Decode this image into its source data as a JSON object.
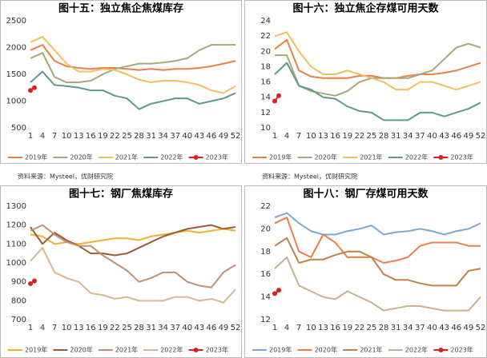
{
  "chart_data": [
    {
      "type": "line",
      "title": "图十五：独立焦企焦煤库存",
      "source": "资料来源：Mysteel，优财研究院",
      "xlim": [
        1,
        52
      ],
      "xticks": [
        1,
        4,
        7,
        10,
        13,
        16,
        19,
        22,
        25,
        28,
        31,
        34,
        37,
        40,
        43,
        46,
        49,
        52
      ],
      "ylim": [
        500,
        2500
      ],
      "yticks": [
        500,
        1000,
        1500,
        2000,
        2500
      ],
      "series": [
        {
          "name": "2019年",
          "color": "#e8804a",
          "x": [
            1,
            4,
            7,
            10,
            13,
            16,
            19,
            22,
            25,
            28,
            31,
            34,
            37,
            40,
            43,
            46,
            49,
            52
          ],
          "values": [
            1950,
            2050,
            1750,
            1650,
            1620,
            1600,
            1620,
            1620,
            1600,
            1580,
            1600,
            1580,
            1600,
            1600,
            1620,
            1650,
            1700,
            1750
          ]
        },
        {
          "name": "2020年",
          "color": "#a8a878",
          "x": [
            1,
            4,
            7,
            10,
            13,
            16,
            19,
            22,
            25,
            28,
            31,
            34,
            37,
            40,
            43,
            46,
            49,
            52
          ],
          "values": [
            1800,
            1900,
            1450,
            1350,
            1350,
            1380,
            1500,
            1600,
            1650,
            1700,
            1700,
            1720,
            1750,
            1800,
            1950,
            2050,
            2050,
            2050
          ]
        },
        {
          "name": "2021年",
          "color": "#f0c060",
          "x": [
            1,
            4,
            7,
            10,
            13,
            16,
            19,
            22,
            25,
            28,
            31,
            34,
            37,
            40,
            43,
            46,
            49,
            52
          ],
          "values": [
            2100,
            2200,
            1950,
            1700,
            1550,
            1550,
            1600,
            1580,
            1500,
            1400,
            1350,
            1380,
            1380,
            1350,
            1300,
            1200,
            1150,
            1280
          ]
        },
        {
          "name": "2022年",
          "color": "#5f9a8a",
          "x": [
            1,
            4,
            7,
            10,
            13,
            16,
            19,
            22,
            25,
            28,
            31,
            34,
            37,
            40,
            43,
            46,
            49,
            52
          ],
          "values": [
            1350,
            1550,
            1300,
            1280,
            1250,
            1200,
            1200,
            1100,
            1050,
            850,
            950,
            1000,
            1050,
            1050,
            950,
            1000,
            1050,
            1150
          ]
        },
        {
          "name": "2023年",
          "color": "#e02020",
          "marker": true,
          "x": [
            1,
            2
          ],
          "values": [
            1200,
            1250
          ]
        }
      ]
    },
    {
      "type": "line",
      "title": "图十六：独立焦企存煤可用天数",
      "source": "资料来源：Mysteel，优财研究院",
      "xlim": [
        1,
        52
      ],
      "xticks": [
        1,
        4,
        7,
        10,
        13,
        16,
        19,
        22,
        25,
        28,
        31,
        34,
        37,
        40,
        43,
        46,
        49,
        52
      ],
      "ylim": [
        10,
        24
      ],
      "yticks": [
        10,
        12,
        14,
        16,
        18,
        20,
        22,
        24
      ],
      "series": [
        {
          "name": "2019年",
          "color": "#e8804a",
          "x": [
            1,
            4,
            7,
            10,
            13,
            16,
            19,
            22,
            25,
            28,
            31,
            34,
            37,
            40,
            43,
            46,
            49,
            52
          ],
          "values": [
            20.3,
            21.5,
            17.5,
            16.7,
            16.5,
            16.5,
            16.5,
            16.8,
            16.8,
            16.5,
            16.5,
            16.8,
            17,
            17,
            17.2,
            17.5,
            18,
            18.5
          ]
        },
        {
          "name": "2020年",
          "color": "#a8a878",
          "x": [
            1,
            4,
            7,
            10,
            13,
            16,
            19,
            22,
            25,
            28,
            31,
            34,
            37,
            40,
            43,
            46,
            49,
            52
          ],
          "values": [
            19.5,
            19.5,
            15.5,
            14.8,
            14.5,
            14.2,
            14.8,
            16,
            16.5,
            16.5,
            16.5,
            16.5,
            17,
            17.5,
            19,
            20.5,
            21,
            20.5
          ]
        },
        {
          "name": "2021年",
          "color": "#f0c060",
          "x": [
            1,
            4,
            7,
            10,
            13,
            16,
            19,
            22,
            25,
            28,
            31,
            34,
            37,
            40,
            43,
            46,
            49,
            52
          ],
          "values": [
            22,
            22.5,
            20,
            18,
            17,
            17,
            17.5,
            17,
            16.5,
            16,
            15,
            15,
            16,
            16,
            15.5,
            15,
            15.5,
            16
          ]
        },
        {
          "name": "2022年",
          "color": "#5f9a8a",
          "x": [
            1,
            4,
            7,
            10,
            13,
            16,
            19,
            22,
            25,
            28,
            31,
            34,
            37,
            40,
            43,
            46,
            49,
            52
          ],
          "values": [
            17,
            18.5,
            15.5,
            15,
            14,
            13.8,
            12.8,
            12.2,
            12,
            11,
            11,
            11,
            12,
            12,
            11.5,
            12,
            12.5,
            13.3
          ]
        },
        {
          "name": "2023年",
          "color": "#e02020",
          "marker": true,
          "x": [
            1,
            2
          ],
          "values": [
            13.5,
            14.2
          ]
        }
      ]
    },
    {
      "type": "line",
      "title": "图十七：钢厂焦煤库存",
      "xlim": [
        1,
        52
      ],
      "xticks": [
        1,
        4,
        7,
        10,
        13,
        16,
        19,
        22,
        25,
        28,
        31,
        34,
        37,
        40,
        43,
        46,
        49,
        52
      ],
      "ylim": [
        700,
        1300
      ],
      "yticks": [
        700,
        800,
        900,
        1000,
        1100,
        1200,
        1300
      ],
      "series": [
        {
          "name": "2019年",
          "color": "#f0b030",
          "x": [
            1,
            4,
            7,
            10,
            13,
            16,
            19,
            22,
            25,
            28,
            31,
            34,
            37,
            40,
            43,
            46,
            49,
            52
          ],
          "values": [
            1150,
            1140,
            1100,
            1110,
            1100,
            1110,
            1120,
            1130,
            1130,
            1120,
            1140,
            1150,
            1160,
            1170,
            1160,
            1170,
            1180,
            1170
          ]
        },
        {
          "name": "2020年",
          "color": "#9b5a3a",
          "x": [
            1,
            4,
            7,
            10,
            13,
            16,
            19,
            22,
            25,
            28,
            31,
            34,
            37,
            40,
            43,
            46,
            49,
            52
          ],
          "values": [
            1190,
            1100,
            1160,
            1120,
            1090,
            1050,
            1050,
            1040,
            1050,
            1080,
            1110,
            1140,
            1160,
            1180,
            1190,
            1200,
            1180,
            1190
          ]
        },
        {
          "name": "2021年",
          "color": "#c09070",
          "x": [
            1,
            4,
            7,
            10,
            13,
            16,
            19,
            22,
            25,
            28,
            31,
            34,
            37,
            40,
            43,
            46,
            49,
            52
          ],
          "values": [
            1170,
            1200,
            1150,
            1110,
            1090,
            1090,
            1040,
            1000,
            960,
            900,
            920,
            950,
            950,
            900,
            880,
            870,
            950,
            990
          ]
        },
        {
          "name": "2022年",
          "color": "#d4b890",
          "x": [
            1,
            4,
            7,
            10,
            13,
            16,
            19,
            22,
            25,
            28,
            31,
            34,
            37,
            40,
            43,
            46,
            49,
            52
          ],
          "values": [
            1010,
            1080,
            950,
            920,
            900,
            840,
            830,
            810,
            820,
            800,
            800,
            800,
            820,
            820,
            800,
            810,
            790,
            860
          ]
        },
        {
          "name": "2023年",
          "color": "#e02020",
          "marker": true,
          "x": [
            1,
            2
          ],
          "values": [
            890,
            905
          ]
        }
      ]
    },
    {
      "type": "line",
      "title": "图十八：钢厂存煤可用天数",
      "xlim": [
        1,
        52
      ],
      "xticks": [
        1,
        4,
        7,
        10,
        13,
        16,
        19,
        22,
        25,
        28,
        31,
        34,
        37,
        40,
        43,
        46,
        49,
        52
      ],
      "ylim": [
        12,
        22
      ],
      "yticks": [
        12,
        14,
        16,
        18,
        20,
        22
      ],
      "series": [
        {
          "name": "2019年",
          "color": "#7fa8d0",
          "x": [
            1,
            4,
            7,
            10,
            13,
            16,
            19,
            22,
            25,
            28,
            31,
            34,
            37,
            40,
            43,
            46,
            49,
            52
          ],
          "values": [
            21,
            21.4,
            20.5,
            19.8,
            19.5,
            19.5,
            19.8,
            20,
            20.3,
            19.5,
            19.7,
            19.8,
            20,
            19.8,
            19.5,
            19.8,
            20,
            20.5
          ]
        },
        {
          "name": "2020年",
          "color": "#e8804a",
          "x": [
            1,
            4,
            7,
            10,
            13,
            16,
            19,
            22,
            25,
            28,
            31,
            34,
            37,
            40,
            43,
            46,
            49,
            52
          ],
          "values": [
            20.5,
            21,
            18,
            17.5,
            19.5,
            18.8,
            17.5,
            17.5,
            17.5,
            17,
            17.2,
            17.5,
            18.5,
            18.8,
            18.8,
            18.8,
            18.5,
            18.5
          ]
        },
        {
          "name": "2021年",
          "color": "#c0804a",
          "x": [
            1,
            4,
            7,
            10,
            13,
            16,
            19,
            22,
            25,
            28,
            31,
            34,
            37,
            40,
            43,
            46,
            49,
            52
          ],
          "values": [
            18.5,
            19.2,
            17,
            17.3,
            17.3,
            17.7,
            18,
            18,
            17.5,
            16,
            15.5,
            15.5,
            15.2,
            15,
            15,
            15,
            16.3,
            16.5
          ]
        },
        {
          "name": "2022年",
          "color": "#c8b090",
          "x": [
            1,
            4,
            7,
            10,
            13,
            16,
            19,
            22,
            25,
            28,
            31,
            34,
            37,
            40,
            43,
            46,
            49,
            52
          ],
          "values": [
            16.5,
            17.5,
            15,
            14.5,
            14,
            13.8,
            14.5,
            14,
            13.5,
            12.8,
            13,
            13.2,
            13.2,
            13,
            12.8,
            12.8,
            12.8,
            14
          ]
        },
        {
          "name": "2023年",
          "color": "#e02020",
          "marker": true,
          "x": [
            1,
            2
          ],
          "values": [
            14.3,
            14.6
          ]
        }
      ]
    }
  ]
}
